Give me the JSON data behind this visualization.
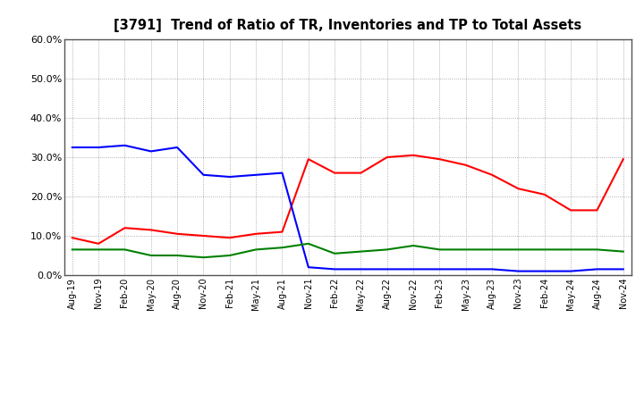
{
  "title": "[3791]  Trend of Ratio of TR, Inventories and TP to Total Assets",
  "x_labels": [
    "Aug-19",
    "Nov-19",
    "Feb-20",
    "May-20",
    "Aug-20",
    "Nov-20",
    "Feb-21",
    "May-21",
    "Aug-21",
    "Nov-21",
    "Feb-22",
    "May-22",
    "Aug-22",
    "Nov-22",
    "Feb-23",
    "May-23",
    "Aug-23",
    "Nov-23",
    "Feb-24",
    "May-24",
    "Aug-24",
    "Nov-24"
  ],
  "trade_receivables": [
    9.5,
    8.0,
    12.0,
    11.5,
    10.5,
    10.0,
    9.5,
    10.5,
    11.0,
    29.5,
    26.0,
    26.0,
    30.0,
    30.5,
    29.5,
    28.0,
    25.5,
    22.0,
    20.5,
    16.5,
    16.5,
    29.5
  ],
  "inventories": [
    32.5,
    32.5,
    33.0,
    31.5,
    32.5,
    25.5,
    25.0,
    25.5,
    26.0,
    2.0,
    1.5,
    1.5,
    1.5,
    1.5,
    1.5,
    1.5,
    1.5,
    1.0,
    1.0,
    1.0,
    1.5,
    1.5
  ],
  "trade_payables": [
    6.5,
    6.5,
    6.5,
    5.0,
    5.0,
    4.5,
    5.0,
    6.5,
    7.0,
    8.0,
    5.5,
    6.0,
    6.5,
    7.5,
    6.5,
    6.5,
    6.5,
    6.5,
    6.5,
    6.5,
    6.5,
    6.0
  ],
  "tr_color": "#ff0000",
  "inv_color": "#0000ff",
  "tp_color": "#008000",
  "ylim": [
    0,
    60
  ],
  "yticks": [
    0,
    10,
    20,
    30,
    40,
    50,
    60
  ],
  "background_color": "#ffffff",
  "grid_color": "#999999"
}
